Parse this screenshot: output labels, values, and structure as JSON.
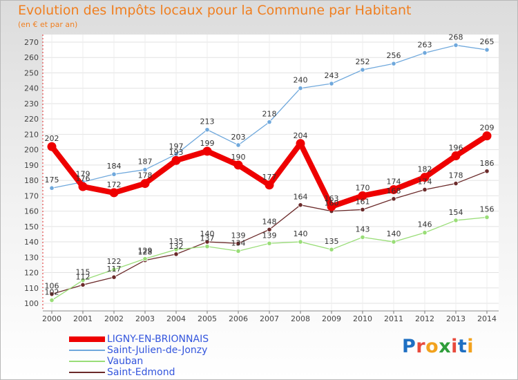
{
  "chart_data": {
    "type": "line",
    "title": "Evolution des Impôts locaux pour la Commune par Habitant",
    "subtitle": "(en € et par an)",
    "xlabel": "",
    "ylabel": "",
    "x": [
      2000,
      2001,
      2002,
      2003,
      2004,
      2005,
      2006,
      2007,
      2008,
      2009,
      2010,
      2011,
      2012,
      2013,
      2014
    ],
    "x_labels": [
      "2000",
      "2001",
      "2002",
      "2003",
      "2004",
      "2005",
      "2006",
      "2007",
      "2008",
      "2009",
      "2010",
      "2011",
      "2012",
      "2013",
      "2014"
    ],
    "ylim": [
      100,
      270
    ],
    "yticks": [
      100,
      110,
      120,
      130,
      140,
      150,
      160,
      170,
      180,
      190,
      200,
      210,
      220,
      230,
      240,
      250,
      260,
      270
    ],
    "ytick_labels": [
      "100",
      "110",
      "120",
      "130",
      "140",
      "150",
      "160",
      "170",
      "180",
      "190",
      "200",
      "210",
      "220",
      "230",
      "240",
      "250",
      "260",
      "270"
    ],
    "grid": true,
    "legend_position": "bottom-left",
    "series": [
      {
        "name": "LIGNY-EN-BRIONNAIS",
        "color": "#ee0000",
        "values": [
          202,
          176,
          172,
          178,
          193,
          199,
          190,
          177,
          204,
          163,
          170,
          174,
          182,
          196,
          209
        ],
        "labels": [
          "202",
          "176",
          "172",
          "178",
          "193",
          "199",
          "190",
          "177",
          "204",
          "163",
          "170",
          "174",
          "182",
          "196",
          "209"
        ]
      },
      {
        "name": "Saint-Julien-de-Jonzy",
        "color": "#6fa8dc",
        "values": [
          175,
          179,
          184,
          187,
          197,
          213,
          203,
          218,
          240,
          243,
          252,
          256,
          263,
          268,
          265
        ],
        "labels": [
          "175",
          "179",
          "184",
          "187",
          "197",
          "213",
          "203",
          "218",
          "240",
          "243",
          "252",
          "256",
          "263",
          "268",
          "265"
        ]
      },
      {
        "name": "Vauban",
        "color": "#99dd77",
        "values": [
          102,
          115,
          122,
          129,
          135,
          137,
          134,
          139,
          140,
          135,
          143,
          140,
          146,
          154,
          156
        ],
        "labels": [
          "102",
          "115",
          "122",
          "129",
          "135",
          "137",
          "134",
          "139",
          "140",
          "135",
          "143",
          "140",
          "146",
          "154",
          "156"
        ]
      },
      {
        "name": "Saint-Edmond",
        "color": "#6b2a2a",
        "values": [
          106,
          112,
          117,
          128,
          132,
          140,
          139,
          148,
          164,
          160,
          161,
          168,
          174,
          178,
          186
        ],
        "labels": [
          "106",
          "112",
          "117",
          "128",
          "132",
          "140",
          "139",
          "148",
          "164",
          "160",
          "161",
          "168",
          "174",
          "178",
          "186"
        ]
      }
    ]
  },
  "logo": {
    "text": "Proxiti",
    "colors": [
      "#1e6fc2",
      "#e84a3c",
      "#f2a21d",
      "#2f9d3a",
      "#e84a3c",
      "#1e6fc2",
      "#f2a21d"
    ]
  }
}
